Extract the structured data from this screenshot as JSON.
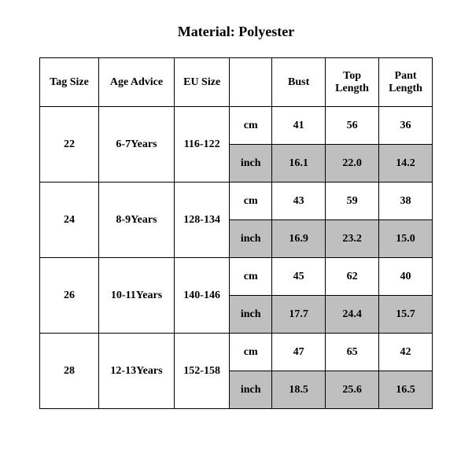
{
  "title": "Material: Polyester",
  "table": {
    "columns": [
      "Tag Size",
      "Age Advice",
      "EU Size",
      "",
      "Bust",
      "Top Length",
      "Pant Length"
    ],
    "shaded_bg": "#bfbfbf",
    "border_color": "#000000",
    "font_family": "Times New Roman",
    "header_fontsize": 14,
    "cell_fontsize": 14,
    "rows": [
      {
        "tag": "22",
        "age": "6-7Years",
        "eu": "116-122",
        "units": [
          {
            "label": "cm",
            "bust": "41",
            "top": "56",
            "pant": "36",
            "shaded": false
          },
          {
            "label": "inch",
            "bust": "16.1",
            "top": "22.0",
            "pant": "14.2",
            "shaded": true
          }
        ]
      },
      {
        "tag": "24",
        "age": "8-9Years",
        "eu": "128-134",
        "units": [
          {
            "label": "cm",
            "bust": "43",
            "top": "59",
            "pant": "38",
            "shaded": false
          },
          {
            "label": "inch",
            "bust": "16.9",
            "top": "23.2",
            "pant": "15.0",
            "shaded": true
          }
        ]
      },
      {
        "tag": "26",
        "age": "10-11Years",
        "eu": "140-146",
        "units": [
          {
            "label": "cm",
            "bust": "45",
            "top": "62",
            "pant": "40",
            "shaded": false
          },
          {
            "label": "inch",
            "bust": "17.7",
            "top": "24.4",
            "pant": "15.7",
            "shaded": true
          }
        ]
      },
      {
        "tag": "28",
        "age": "12-13Years",
        "eu": "152-158",
        "units": [
          {
            "label": "cm",
            "bust": "47",
            "top": "65",
            "pant": "42",
            "shaded": false
          },
          {
            "label": "inch",
            "bust": "18.5",
            "top": "25.6",
            "pant": "16.5",
            "shaded": true
          }
        ]
      }
    ]
  }
}
